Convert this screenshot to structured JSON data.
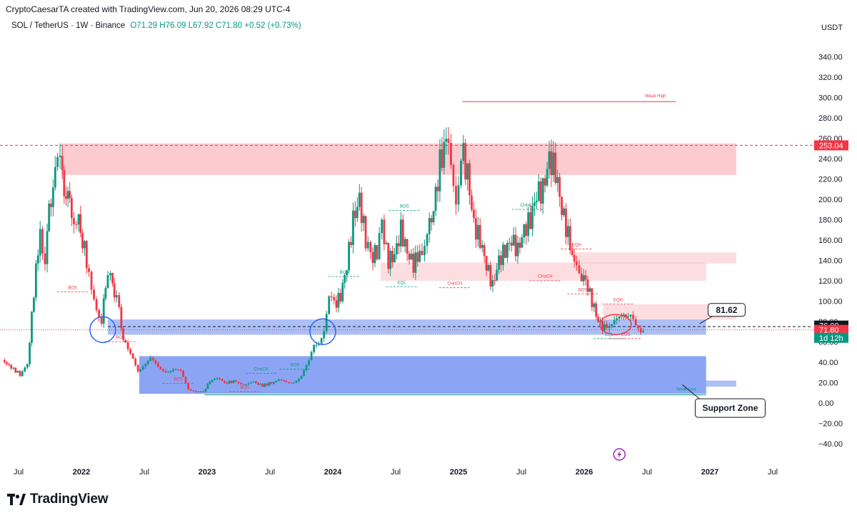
{
  "header": {
    "credit": "CryptoCaesarTA created with TradingView.com, Jun 20, 2026 08:29 UTC-4",
    "symbol": "SOL / TetherUS · 1W · Binance",
    "open": "O71.29",
    "high": "H76.09",
    "low": "L67.92",
    "close": "C71.80",
    "change": "+0.52 (+0.73%)",
    "currency": "USDT"
  },
  "brand": {
    "name": "TradingView"
  },
  "colors": {
    "up": "#089981",
    "down": "#f23645",
    "supply": "#f7a1a8",
    "demand": "#5a7ff0"
  },
  "chart_data": {
    "type": "candlestick",
    "y_ticks": [
      "340.00",
      "320.00",
      "300.00",
      "280.00",
      "260.00",
      "240.00",
      "220.00",
      "200.00",
      "180.00",
      "160.00",
      "140.00",
      "120.00",
      "100.00",
      "80.00",
      "60.00",
      "40.00",
      "20.00",
      "0.00",
      "−20.00",
      "−40.00"
    ],
    "y_tick_values": [
      340,
      320,
      300,
      280,
      260,
      240,
      220,
      200,
      180,
      160,
      140,
      120,
      100,
      80,
      60,
      40,
      20,
      0,
      -20,
      -40
    ],
    "ylim": [
      -48,
      352
    ],
    "x_labels": [
      {
        "label": "Jul",
        "t": 2021.5,
        "bold": false
      },
      {
        "label": "2022",
        "t": 2022.0,
        "bold": true
      },
      {
        "label": "Jul",
        "t": 2022.5,
        "bold": false
      },
      {
        "label": "2023",
        "t": 2023.0,
        "bold": true
      },
      {
        "label": "Jul",
        "t": 2023.5,
        "bold": false
      },
      {
        "label": "2024",
        "t": 2024.0,
        "bold": true
      },
      {
        "label": "Jul",
        "t": 2024.5,
        "bold": false
      },
      {
        "label": "2025",
        "t": 2025.0,
        "bold": true
      },
      {
        "label": "Jul",
        "t": 2025.5,
        "bold": false
      },
      {
        "label": "2026",
        "t": 2026.0,
        "bold": true
      },
      {
        "label": "Jul",
        "t": 2026.5,
        "bold": false
      },
      {
        "label": "2027",
        "t": 2027.0,
        "bold": true
      },
      {
        "label": "Jul",
        "t": 2027.5,
        "bold": false
      }
    ],
    "price_path": [
      [
        2021.38,
        42
      ],
      [
        2021.45,
        35
      ],
      [
        2021.52,
        28
      ],
      [
        2021.58,
        36
      ],
      [
        2021.63,
        110
      ],
      [
        2021.68,
        170
      ],
      [
        2021.72,
        140
      ],
      [
        2021.75,
        185
      ],
      [
        2021.8,
        225
      ],
      [
        2021.84,
        245
      ],
      [
        2021.87,
        215
      ],
      [
        2021.9,
        205
      ],
      [
        2021.93,
        175
      ],
      [
        2021.97,
        185
      ],
      [
        2022.0,
        170
      ],
      [
        2022.05,
        140
      ],
      [
        2022.09,
        105
      ],
      [
        2022.13,
        90
      ],
      [
        2022.17,
        82
      ],
      [
        2022.2,
        115
      ],
      [
        2022.24,
        128
      ],
      [
        2022.27,
        110
      ],
      [
        2022.31,
        90
      ],
      [
        2022.34,
        65
      ],
      [
        2022.38,
        50
      ],
      [
        2022.42,
        42
      ],
      [
        2022.46,
        32
      ],
      [
        2022.5,
        38
      ],
      [
        2022.56,
        43
      ],
      [
        2022.62,
        34
      ],
      [
        2022.68,
        32
      ],
      [
        2022.74,
        33
      ],
      [
        2022.8,
        30
      ],
      [
        2022.86,
        14
      ],
      [
        2022.92,
        12
      ],
      [
        2022.98,
        10
      ],
      [
        2023.03,
        22
      ],
      [
        2023.09,
        23
      ],
      [
        2023.15,
        20
      ],
      [
        2023.22,
        21
      ],
      [
        2023.3,
        19
      ],
      [
        2023.38,
        20
      ],
      [
        2023.45,
        17
      ],
      [
        2023.52,
        20
      ],
      [
        2023.58,
        22
      ],
      [
        2023.64,
        20
      ],
      [
        2023.7,
        21
      ],
      [
        2023.76,
        26
      ],
      [
        2023.82,
        40
      ],
      [
        2023.86,
        58
      ],
      [
        2023.9,
        62
      ],
      [
        2023.94,
        72
      ],
      [
        2023.98,
        100
      ],
      [
        2024.02,
        96
      ],
      [
        2024.07,
        105
      ],
      [
        2024.12,
        135
      ],
      [
        2024.17,
        180
      ],
      [
        2024.22,
        200
      ],
      [
        2024.27,
        160
      ],
      [
        2024.31,
        140
      ],
      [
        2024.36,
        150
      ],
      [
        2024.4,
        170
      ],
      [
        2024.45,
        140
      ],
      [
        2024.5,
        145
      ],
      [
        2024.55,
        170
      ],
      [
        2024.6,
        148
      ],
      [
        2024.65,
        136
      ],
      [
        2024.7,
        148
      ],
      [
        2024.76,
        165
      ],
      [
        2024.81,
        190
      ],
      [
        2024.86,
        235
      ],
      [
        2024.91,
        258
      ],
      [
        2024.95,
        230
      ],
      [
        2024.99,
        205
      ],
      [
        2025.03,
        250
      ],
      [
        2025.08,
        225
      ],
      [
        2025.13,
        175
      ],
      [
        2025.18,
        160
      ],
      [
        2025.23,
        135
      ],
      [
        2025.28,
        115
      ],
      [
        2025.33,
        140
      ],
      [
        2025.38,
        150
      ],
      [
        2025.43,
        160
      ],
      [
        2025.48,
        150
      ],
      [
        2025.53,
        170
      ],
      [
        2025.58,
        180
      ],
      [
        2025.63,
        205
      ],
      [
        2025.68,
        210
      ],
      [
        2025.73,
        240
      ],
      [
        2025.78,
        228
      ],
      [
        2025.83,
        190
      ],
      [
        2025.88,
        165
      ],
      [
        2025.93,
        135
      ],
      [
        2025.97,
        128
      ],
      [
        2026.02,
        120
      ],
      [
        2026.07,
        100
      ],
      [
        2026.12,
        80
      ],
      [
        2026.17,
        73
      ],
      [
        2026.21,
        80
      ],
      [
        2026.25,
        84
      ],
      [
        2026.29,
        82
      ],
      [
        2026.34,
        88
      ],
      [
        2026.38,
        85
      ],
      [
        2026.42,
        72
      ],
      [
        2026.46,
        68
      ],
      [
        2026.48,
        71.8
      ]
    ],
    "supply_zones": [
      {
        "x0": 2021.84,
        "x1": 2027.21,
        "y0": 224,
        "y1": 255,
        "dashed_level": 253.04
      },
      {
        "x0": 2025.93,
        "x1": 2027.21,
        "y0": 137,
        "y1": 148
      },
      {
        "x0": 2024.38,
        "x1": 2026.97,
        "y0": 120,
        "y1": 138
      },
      {
        "x0": 2026.15,
        "x1": 2027.21,
        "y0": 82,
        "y1": 97
      }
    ],
    "demand_zones": [
      {
        "x0": 2022.21,
        "x1": 2026.97,
        "y0": 67,
        "y1": 82
      },
      {
        "x0": 2022.46,
        "x1": 2026.97,
        "y0": 9,
        "y1": 46
      },
      {
        "x0": 2026.97,
        "x1": 2027.21,
        "y0": 16,
        "y1": 22
      }
    ],
    "levels": [
      {
        "label": "Weak High",
        "t0": 2025.03,
        "t1": 2026.73,
        "y": 296
      },
      {
        "label": "Weak Low",
        "t0": 2022.98,
        "t1": 2026.97,
        "y": 8
      }
    ],
    "smc_labels": [
      {
        "label": "BOS",
        "t": 2021.93,
        "y": 112,
        "color": "#f23645"
      },
      {
        "label": "BOS",
        "t": 2022.31,
        "y": 63,
        "color": "#f23645"
      },
      {
        "label": "BOS",
        "t": 2022.77,
        "y": 22,
        "color": "#f23645"
      },
      {
        "label": "BOS",
        "t": 2023.3,
        "y": 14,
        "color": "#f23645"
      },
      {
        "label": "CHoCH",
        "t": 2023.43,
        "y": 32,
        "color": "#089981"
      },
      {
        "label": "BOS",
        "t": 2023.7,
        "y": 36,
        "color": "#089981"
      },
      {
        "label": "BOS",
        "t": 2024.09,
        "y": 127,
        "color": "#089981"
      },
      {
        "label": "BOS",
        "t": 2024.57,
        "y": 192,
        "color": "#089981"
      },
      {
        "label": "EQL",
        "t": 2024.55,
        "y": 117,
        "color": "#089981"
      },
      {
        "label": "CHoCH",
        "t": 2024.97,
        "y": 116,
        "color": "#f23645"
      },
      {
        "label": "CHoCH",
        "t": 2025.55,
        "y": 193,
        "color": "#089981"
      },
      {
        "label": "CHoCH",
        "t": 2025.69,
        "y": 123,
        "color": "#f23645"
      },
      {
        "label": "EQH",
        "t": 2025.94,
        "y": 154,
        "color": "#f23645"
      },
      {
        "label": "BOS",
        "t": 2025.99,
        "y": 110,
        "color": "#f23645"
      },
      {
        "label": "EQH",
        "t": 2026.27,
        "y": 100,
        "color": "#f23645"
      },
      {
        "label": "EQL",
        "t": 2026.2,
        "y": 66,
        "color": "#089981"
      },
      {
        "label": "BOS",
        "t": 2026.33,
        "y": 66,
        "color": "#f23645"
      }
    ],
    "price_badges": [
      {
        "label": "253.04",
        "y": 253.04,
        "bg": "#f23645",
        "fg": "#ffffff"
      },
      {
        "label": "76.00",
        "y": 76.0,
        "bg": "#131722",
        "fg": "#ffffff"
      },
      {
        "label": "71.80",
        "y": 71.8,
        "bg": "#f23645",
        "fg": "#ffffff"
      },
      {
        "label": "1d 12h",
        "y": 64,
        "bg": "#089981",
        "fg": "#ffffff"
      }
    ],
    "annotations": [
      {
        "label": "81.62",
        "t": 2026.94,
        "y": 90
      },
      {
        "label": "Support Zone",
        "t": 2026.94,
        "y": -5
      }
    ],
    "circles": [
      {
        "t": 2022.17,
        "y": 72,
        "color": "#2962ff"
      },
      {
        "t": 2023.92,
        "y": 70,
        "color": "#2962ff"
      },
      {
        "t": 2026.25,
        "y": 77,
        "color": "#f23645"
      }
    ]
  }
}
